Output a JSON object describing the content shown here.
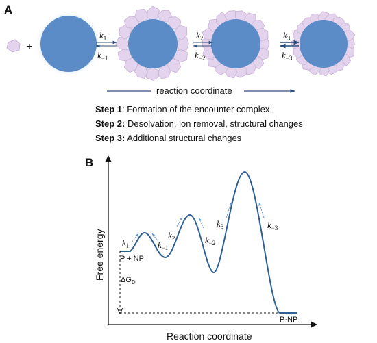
{
  "panel_a": {
    "label": "A",
    "plus": "+",
    "rates": [
      {
        "fwd": "k",
        "fwd_sub": "1",
        "rev": "k",
        "rev_sub": "−1"
      },
      {
        "fwd": "k",
        "fwd_sub": "2",
        "rev": "k",
        "rev_sub": "−2"
      },
      {
        "fwd": "k",
        "fwd_sub": "3",
        "rev": "k",
        "rev_sub": "−3"
      }
    ],
    "reaction_coordinate": "reaction coordinate",
    "steps": [
      {
        "label": "Step 1",
        "text": ": Formation of the encounter complex"
      },
      {
        "label": "Step 2:",
        "text": " Desolvation, ion removal, structural changes"
      },
      {
        "label": "Step 3:",
        "text": " Additional structural changes"
      }
    ],
    "colors": {
      "nanoparticle": "#5b8cc8",
      "protein": "#e3d3ec",
      "protein_edge": "#c9b2d8",
      "arrow": "#2f4f7f"
    }
  },
  "panel_b": {
    "label": "B",
    "ylabel": "Free energy",
    "xlabel": "Reaction coordinate",
    "start_label": "P + NP",
    "end_label": "P·NP",
    "delta_g": "ΔG",
    "delta_g_sub": "D",
    "rate_labels": [
      {
        "main": "k",
        "sub": "1"
      },
      {
        "main": "k",
        "sub": "−1"
      },
      {
        "main": "k",
        "sub": "2"
      },
      {
        "main": "k",
        "sub": "−2"
      },
      {
        "main": "k",
        "sub": "3"
      },
      {
        "main": "k",
        "sub": "−3"
      }
    ],
    "colors": {
      "curve": "#2e5f94",
      "hint_arrow": "#6a9bd0"
    }
  }
}
